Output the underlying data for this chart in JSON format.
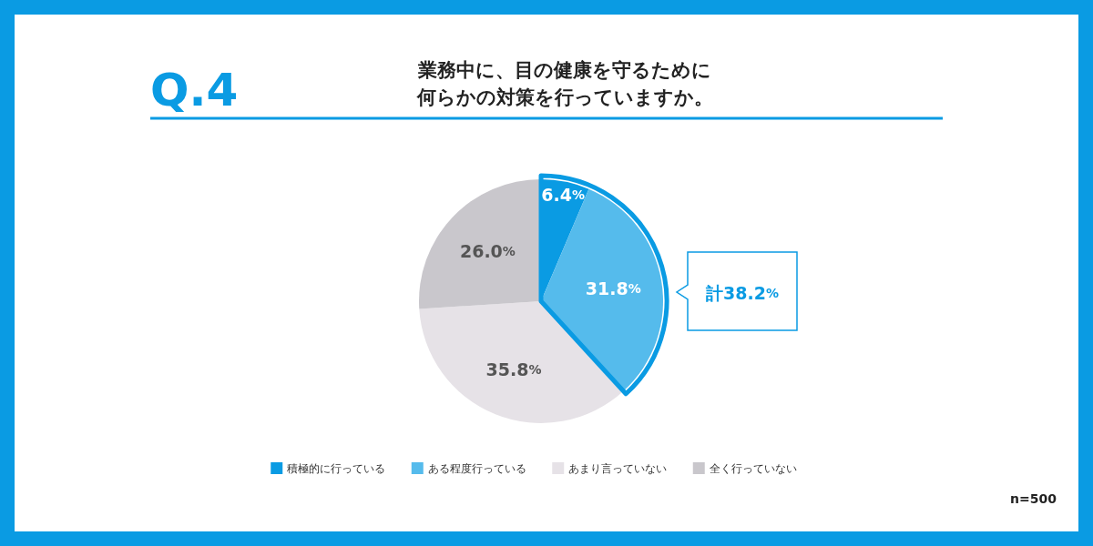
{
  "chart_data": {
    "type": "pie",
    "title": "Q.4",
    "subtitle": "業務中に、目の健康を守るために何らかの対策を行っていますか。",
    "categories": [
      "積極的に行っている",
      "ある程度行っている",
      "あまり言っていない",
      "全く行っていない"
    ],
    "values": [
      6.4,
      31.8,
      35.8,
      26.0
    ],
    "colors": [
      "#0a9be3",
      "#55bbec",
      "#e6e2e7",
      "#c9c7cc"
    ],
    "value_labels": [
      "6.4%",
      "31.8%",
      "35.8%",
      "26.0%"
    ],
    "legend": "bottom",
    "annotations": [
      "計38.2%",
      "n=500"
    ]
  }
}
